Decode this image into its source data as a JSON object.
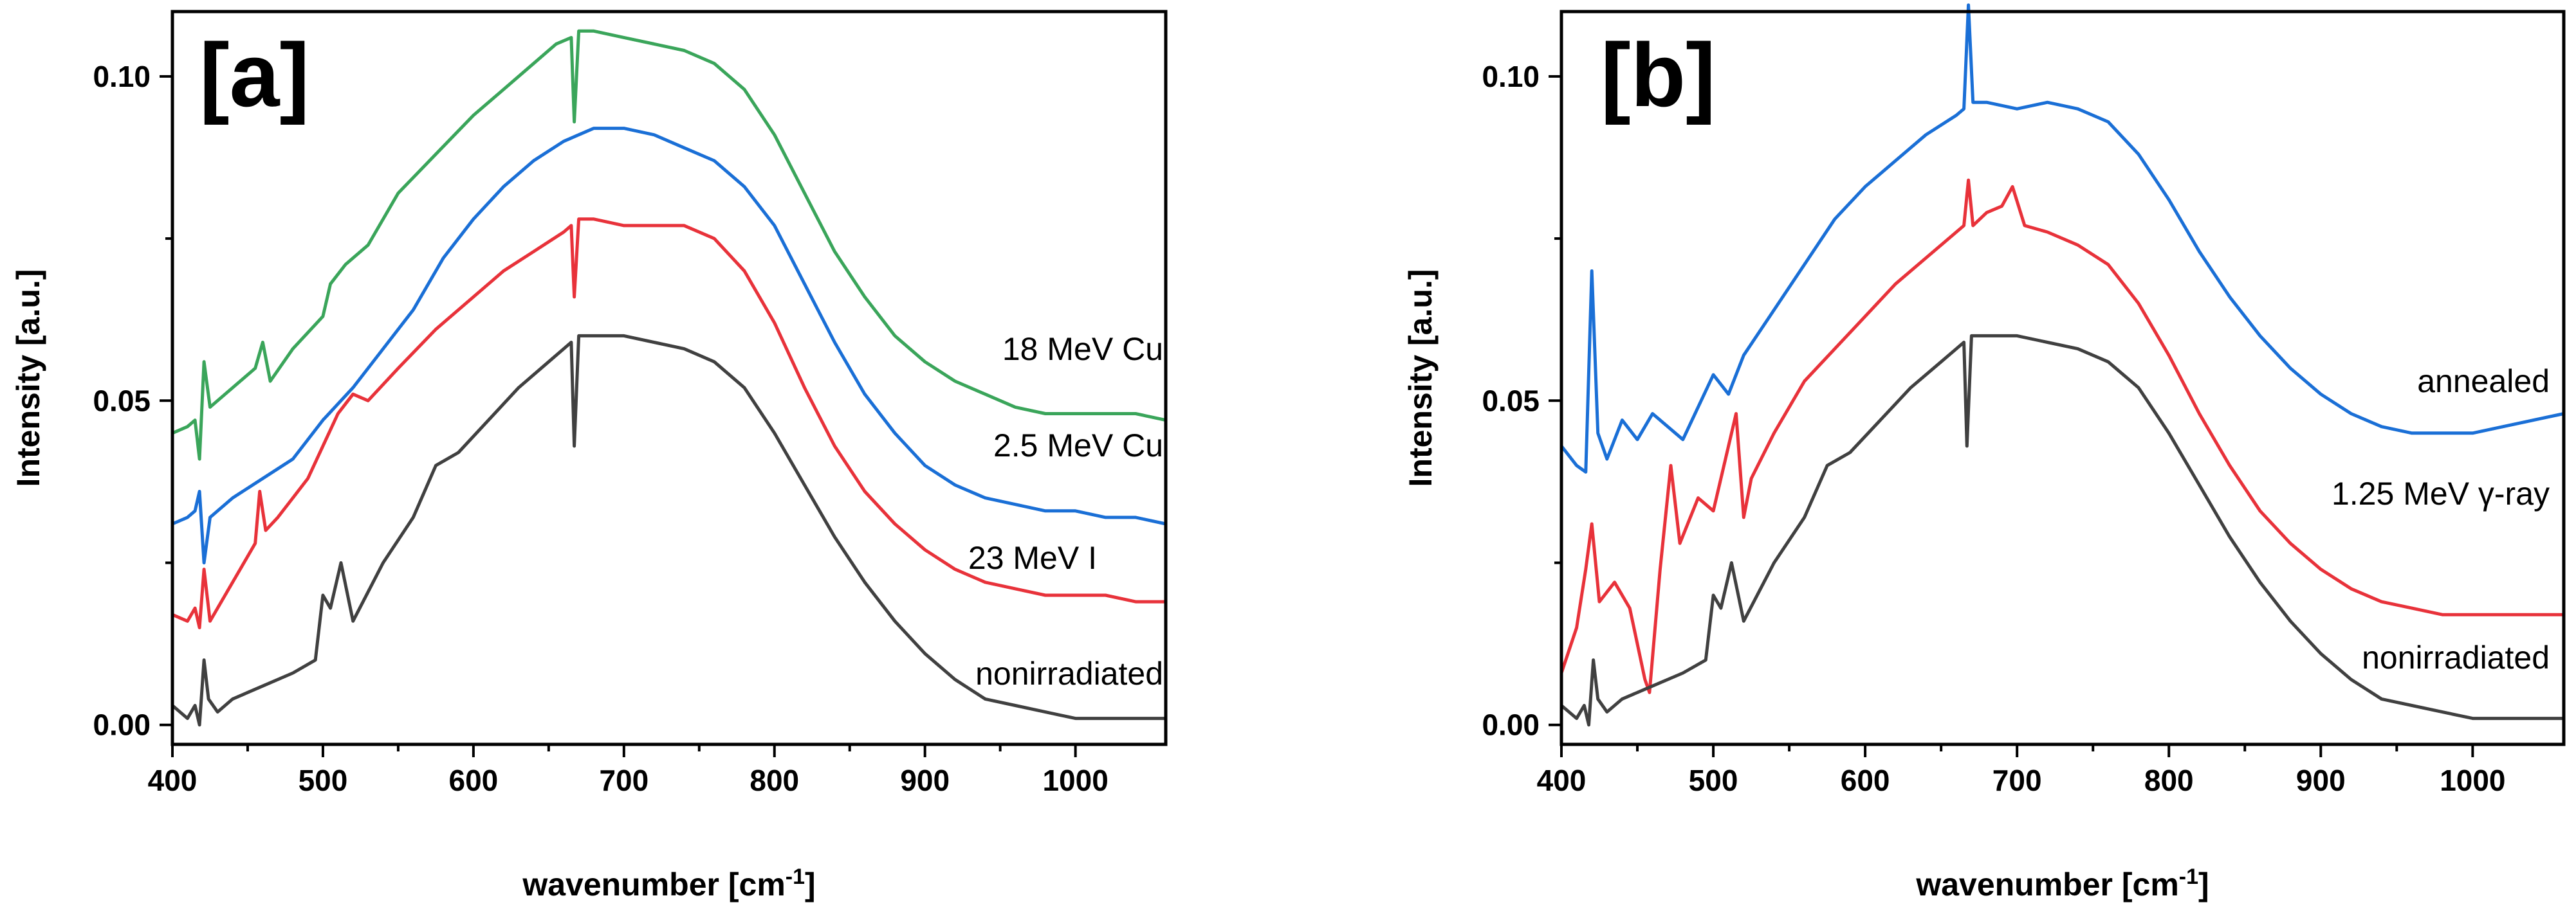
{
  "chart_data": [
    {
      "type": "line",
      "panel_label": "[a]",
      "xlabel": "wavenumber [cm",
      "xlabel_superscript": "-1",
      "xlabel_suffix": "]",
      "ylabel": "Intensity [a.u.]",
      "xlim": [
        400,
        1060
      ],
      "ylim": [
        -0.003,
        0.11
      ],
      "x_ticks": [
        400,
        500,
        600,
        700,
        800,
        900,
        1000
      ],
      "y_ticks": [
        0.0,
        0.05,
        0.1
      ],
      "y_tick_labels": [
        "0.00",
        "0.05",
        "0.10"
      ],
      "x_tick_labels": [
        "400",
        "500",
        "600",
        "700",
        "800",
        "900",
        "1000"
      ],
      "series": [
        {
          "name": "18 MeV Cu",
          "color": "#3aa55a",
          "x": [
            400,
            410,
            415,
            418,
            421,
            425,
            440,
            455,
            460,
            465,
            480,
            500,
            505,
            515,
            530,
            550,
            575,
            600,
            620,
            640,
            655,
            665,
            667,
            670,
            680,
            700,
            720,
            740,
            760,
            780,
            800,
            820,
            840,
            860,
            880,
            900,
            920,
            940,
            960,
            980,
            1000,
            1020,
            1040,
            1060
          ],
          "values": [
            0.045,
            0.046,
            0.047,
            0.041,
            0.056,
            0.049,
            0.052,
            0.055,
            0.059,
            0.053,
            0.058,
            0.063,
            0.068,
            0.071,
            0.074,
            0.082,
            0.088,
            0.094,
            0.098,
            0.102,
            0.105,
            0.106,
            0.093,
            0.107,
            0.107,
            0.106,
            0.105,
            0.104,
            0.102,
            0.098,
            0.091,
            0.082,
            0.073,
            0.066,
            0.06,
            0.056,
            0.053,
            0.051,
            0.049,
            0.048,
            0.048,
            0.048,
            0.048,
            0.047
          ]
        },
        {
          "name": "2.5 MeV Cu",
          "color": "#1a6fd6",
          "x": [
            400,
            410,
            415,
            418,
            421,
            425,
            440,
            460,
            480,
            500,
            520,
            540,
            560,
            580,
            600,
            620,
            640,
            660,
            680,
            700,
            720,
            740,
            760,
            780,
            800,
            820,
            840,
            860,
            880,
            900,
            920,
            940,
            960,
            980,
            1000,
            1020,
            1040,
            1060
          ],
          "values": [
            0.031,
            0.032,
            0.033,
            0.036,
            0.025,
            0.032,
            0.035,
            0.038,
            0.041,
            0.047,
            0.052,
            0.058,
            0.064,
            0.072,
            0.078,
            0.083,
            0.087,
            0.09,
            0.092,
            0.092,
            0.091,
            0.089,
            0.087,
            0.083,
            0.077,
            0.068,
            0.059,
            0.051,
            0.045,
            0.04,
            0.037,
            0.035,
            0.034,
            0.033,
            0.033,
            0.032,
            0.032,
            0.031
          ]
        },
        {
          "name": "23 MeV I",
          "color": "#e8323a",
          "x": [
            400,
            410,
            415,
            418,
            421,
            425,
            440,
            455,
            458,
            462,
            470,
            480,
            490,
            500,
            510,
            520,
            530,
            550,
            575,
            600,
            620,
            640,
            660,
            665,
            667,
            670,
            680,
            700,
            720,
            740,
            760,
            780,
            800,
            820,
            840,
            860,
            880,
            900,
            920,
            940,
            960,
            980,
            1000,
            1020,
            1040,
            1060
          ],
          "values": [
            0.017,
            0.016,
            0.018,
            0.015,
            0.024,
            0.016,
            0.022,
            0.028,
            0.036,
            0.03,
            0.032,
            0.035,
            0.038,
            0.043,
            0.048,
            0.051,
            0.05,
            0.055,
            0.061,
            0.066,
            0.07,
            0.073,
            0.076,
            0.077,
            0.066,
            0.078,
            0.078,
            0.077,
            0.077,
            0.077,
            0.075,
            0.07,
            0.062,
            0.052,
            0.043,
            0.036,
            0.031,
            0.027,
            0.024,
            0.022,
            0.021,
            0.02,
            0.02,
            0.02,
            0.019,
            0.019
          ]
        },
        {
          "name": "nonirradiated",
          "color": "#404040",
          "x": [
            400,
            410,
            415,
            418,
            421,
            424,
            430,
            440,
            460,
            480,
            495,
            500,
            505,
            512,
            520,
            540,
            560,
            575,
            590,
            610,
            630,
            650,
            660,
            665,
            667,
            670,
            680,
            700,
            720,
            740,
            760,
            780,
            800,
            820,
            840,
            860,
            880,
            900,
            920,
            940,
            960,
            980,
            1000,
            1020,
            1040,
            1060
          ],
          "values": [
            0.003,
            0.001,
            0.003,
            0.0,
            0.01,
            0.004,
            0.002,
            0.004,
            0.006,
            0.008,
            0.01,
            0.02,
            0.018,
            0.025,
            0.016,
            0.025,
            0.032,
            0.04,
            0.042,
            0.047,
            0.052,
            0.056,
            0.058,
            0.059,
            0.043,
            0.06,
            0.06,
            0.06,
            0.059,
            0.058,
            0.056,
            0.052,
            0.045,
            0.037,
            0.029,
            0.022,
            0.016,
            0.011,
            0.007,
            0.004,
            0.003,
            0.002,
            0.001,
            0.001,
            0.001,
            0.001
          ]
        }
      ]
    },
    {
      "type": "line",
      "panel_label": "[b]",
      "xlabel": "wavenumber [cm",
      "xlabel_superscript": "-1",
      "xlabel_suffix": "]",
      "ylabel": "Intensity [a.u.]",
      "xlim": [
        400,
        1060
      ],
      "ylim": [
        -0.003,
        0.11
      ],
      "x_ticks": [
        400,
        500,
        600,
        700,
        800,
        900,
        1000
      ],
      "y_ticks": [
        0.0,
        0.05,
        0.1
      ],
      "y_tick_labels": [
        "0.00",
        "0.05",
        "0.10"
      ],
      "x_tick_labels": [
        "400",
        "500",
        "600",
        "700",
        "800",
        "900",
        "1000"
      ],
      "series": [
        {
          "name": "annealed",
          "color": "#1a6fd6",
          "x": [
            400,
            410,
            416,
            420,
            424,
            430,
            440,
            450,
            460,
            480,
            500,
            510,
            520,
            540,
            560,
            580,
            600,
            620,
            640,
            660,
            665,
            668,
            671,
            680,
            700,
            720,
            740,
            760,
            780,
            800,
            820,
            840,
            860,
            880,
            900,
            920,
            940,
            960,
            980,
            1000,
            1020,
            1040,
            1060
          ],
          "values": [
            0.043,
            0.04,
            0.039,
            0.07,
            0.045,
            0.041,
            0.047,
            0.044,
            0.048,
            0.044,
            0.054,
            0.051,
            0.057,
            0.064,
            0.071,
            0.078,
            0.083,
            0.087,
            0.091,
            0.094,
            0.095,
            0.111,
            0.096,
            0.096,
            0.095,
            0.096,
            0.095,
            0.093,
            0.088,
            0.081,
            0.073,
            0.066,
            0.06,
            0.055,
            0.051,
            0.048,
            0.046,
            0.045,
            0.045,
            0.045,
            0.046,
            0.047,
            0.048
          ]
        },
        {
          "name": "1.25 MeV γ-ray",
          "color": "#e8323a",
          "x": [
            400,
            410,
            416,
            420,
            425,
            435,
            445,
            455,
            458,
            465,
            472,
            478,
            490,
            500,
            510,
            515,
            520,
            525,
            540,
            560,
            580,
            600,
            620,
            640,
            660,
            665,
            668,
            671,
            680,
            690,
            697,
            705,
            720,
            740,
            760,
            780,
            800,
            820,
            840,
            860,
            880,
            900,
            920,
            940,
            960,
            980,
            1000,
            1020,
            1040,
            1060
          ],
          "values": [
            0.008,
            0.015,
            0.024,
            0.031,
            0.019,
            0.022,
            0.018,
            0.007,
            0.005,
            0.024,
            0.04,
            0.028,
            0.035,
            0.033,
            0.043,
            0.048,
            0.032,
            0.038,
            0.045,
            0.053,
            0.058,
            0.063,
            0.068,
            0.072,
            0.076,
            0.077,
            0.084,
            0.077,
            0.079,
            0.08,
            0.083,
            0.077,
            0.076,
            0.074,
            0.071,
            0.065,
            0.057,
            0.048,
            0.04,
            0.033,
            0.028,
            0.024,
            0.021,
            0.019,
            0.018,
            0.017,
            0.017,
            0.017,
            0.017,
            0.017
          ]
        },
        {
          "name": "nonirradiated",
          "color": "#404040",
          "x": [
            400,
            410,
            415,
            418,
            421,
            424,
            430,
            440,
            460,
            480,
            495,
            500,
            505,
            512,
            520,
            540,
            560,
            575,
            590,
            610,
            630,
            650,
            660,
            665,
            667,
            670,
            680,
            700,
            720,
            740,
            760,
            780,
            800,
            820,
            840,
            860,
            880,
            900,
            920,
            940,
            960,
            980,
            1000,
            1020,
            1040,
            1060
          ],
          "values": [
            0.003,
            0.001,
            0.003,
            0.0,
            0.01,
            0.004,
            0.002,
            0.004,
            0.006,
            0.008,
            0.01,
            0.02,
            0.018,
            0.025,
            0.016,
            0.025,
            0.032,
            0.04,
            0.042,
            0.047,
            0.052,
            0.056,
            0.058,
            0.059,
            0.043,
            0.06,
            0.06,
            0.06,
            0.059,
            0.058,
            0.056,
            0.052,
            0.045,
            0.037,
            0.029,
            0.022,
            0.016,
            0.011,
            0.007,
            0.004,
            0.003,
            0.002,
            0.001,
            0.001,
            0.001,
            0.001
          ]
        }
      ]
    }
  ]
}
